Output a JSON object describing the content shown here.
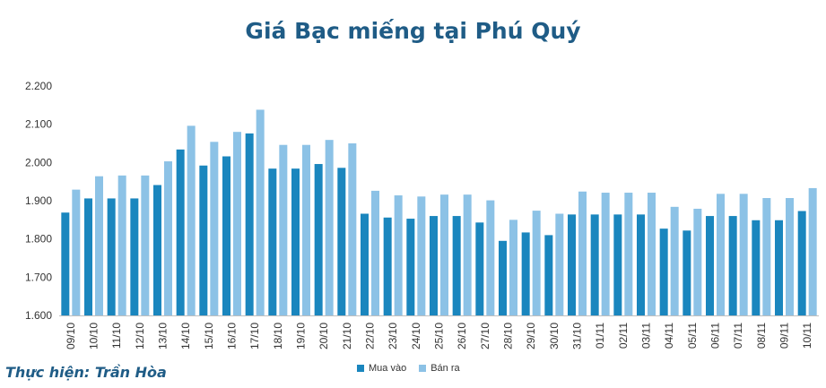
{
  "chart_data": {
    "type": "bar",
    "title": "Giá Bạc miếng tại Phú Quý",
    "xlabel": "",
    "ylabel": "",
    "ylim": [
      1600,
      2200
    ],
    "yticks": [
      1600,
      1700,
      1800,
      1900,
      2000,
      2100,
      2200
    ],
    "ytick_labels": [
      "1.600",
      "1.700",
      "1.800",
      "1.900",
      "2.000",
      "2.100",
      "2.200"
    ],
    "categories": [
      "09/10",
      "10/10",
      "11/10",
      "12/10",
      "13/10",
      "14/10",
      "15/10",
      "16/10",
      "17/10",
      "18/10",
      "19/10",
      "20/10",
      "21/10",
      "22/10",
      "23/10",
      "24/10",
      "25/10",
      "26/10",
      "27/10",
      "28/10",
      "29/10",
      "30/10",
      "31/10",
      "01/11",
      "02/11",
      "03/11",
      "04/11",
      "05/11",
      "06/11",
      "07/11",
      "08/11",
      "09/11",
      "10/11"
    ],
    "series": [
      {
        "name": "Mua vào",
        "color": "#1a86be",
        "values": [
          1869,
          1906,
          1906,
          1906,
          1941,
          2034,
          1992,
          2016,
          2076,
          1984,
          1984,
          1996,
          1986,
          1866,
          1856,
          1853,
          1860,
          1860,
          1843,
          1795,
          1817,
          1810,
          1864,
          1864,
          1864,
          1864,
          1827,
          1822,
          1860,
          1860,
          1849,
          1849,
          1873
        ]
      },
      {
        "name": "Bán ra",
        "color": "#8cc2e6",
        "values": [
          1929,
          1964,
          1966,
          1966,
          2003,
          2096,
          2054,
          2080,
          2138,
          2046,
          2046,
          2059,
          2050,
          1926,
          1914,
          1911,
          1916,
          1916,
          1901,
          1850,
          1874,
          1866,
          1924,
          1921,
          1921,
          1921,
          1884,
          1879,
          1918,
          1918,
          1907,
          1907,
          1933
        ]
      }
    ],
    "grid": false,
    "legend": "bottom-center"
  },
  "credit": "Thực hiện: Trần Hòa"
}
